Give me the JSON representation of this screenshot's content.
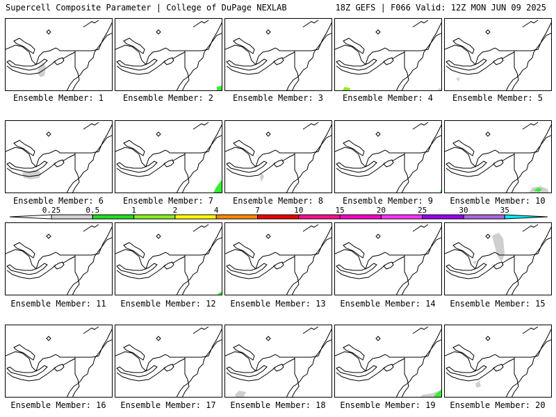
{
  "header": {
    "title": "Supercell Composite Parameter | College of DuPage NEXLAB",
    "run_info": "18Z GEFS | F066 Valid: 12Z MON JUN 09 2025"
  },
  "legend": {
    "levels": [
      "0.25",
      "0.5",
      "1",
      "2",
      "4",
      "7",
      "10",
      "15",
      "20",
      "25",
      "30",
      "35"
    ],
    "colors": [
      "#d3d3d3",
      "#22dd22",
      "#88ee22",
      "#ffff00",
      "#ff8800",
      "#ee0000",
      "#ff1188",
      "#ff00cc",
      "#ff33ff",
      "#9900ee",
      "#aa66dd",
      "#00eeff"
    ]
  },
  "members": [
    {
      "label": "Ensemble Member: 1"
    },
    {
      "label": "Ensemble Member: 2"
    },
    {
      "label": "Ensemble Member: 3"
    },
    {
      "label": "Ensemble Member: 4"
    },
    {
      "label": "Ensemble Member: 5"
    },
    {
      "label": "Ensemble Member: 6"
    },
    {
      "label": "Ensemble Member: 7"
    },
    {
      "label": "Ensemble Member: 8"
    },
    {
      "label": "Ensemble Member: 9"
    },
    {
      "label": "Ensemble Member: 10"
    },
    {
      "label": "Ensemble Member: 11"
    },
    {
      "label": "Ensemble Member: 12"
    },
    {
      "label": "Ensemble Member: 13"
    },
    {
      "label": "Ensemble Member: 14"
    },
    {
      "label": "Ensemble Member: 15"
    },
    {
      "label": "Ensemble Member: 16"
    },
    {
      "label": "Ensemble Member: 17"
    },
    {
      "label": "Ensemble Member: 18"
    },
    {
      "label": "Ensemble Member: 19"
    },
    {
      "label": "Ensemble Member: 20"
    }
  ]
}
